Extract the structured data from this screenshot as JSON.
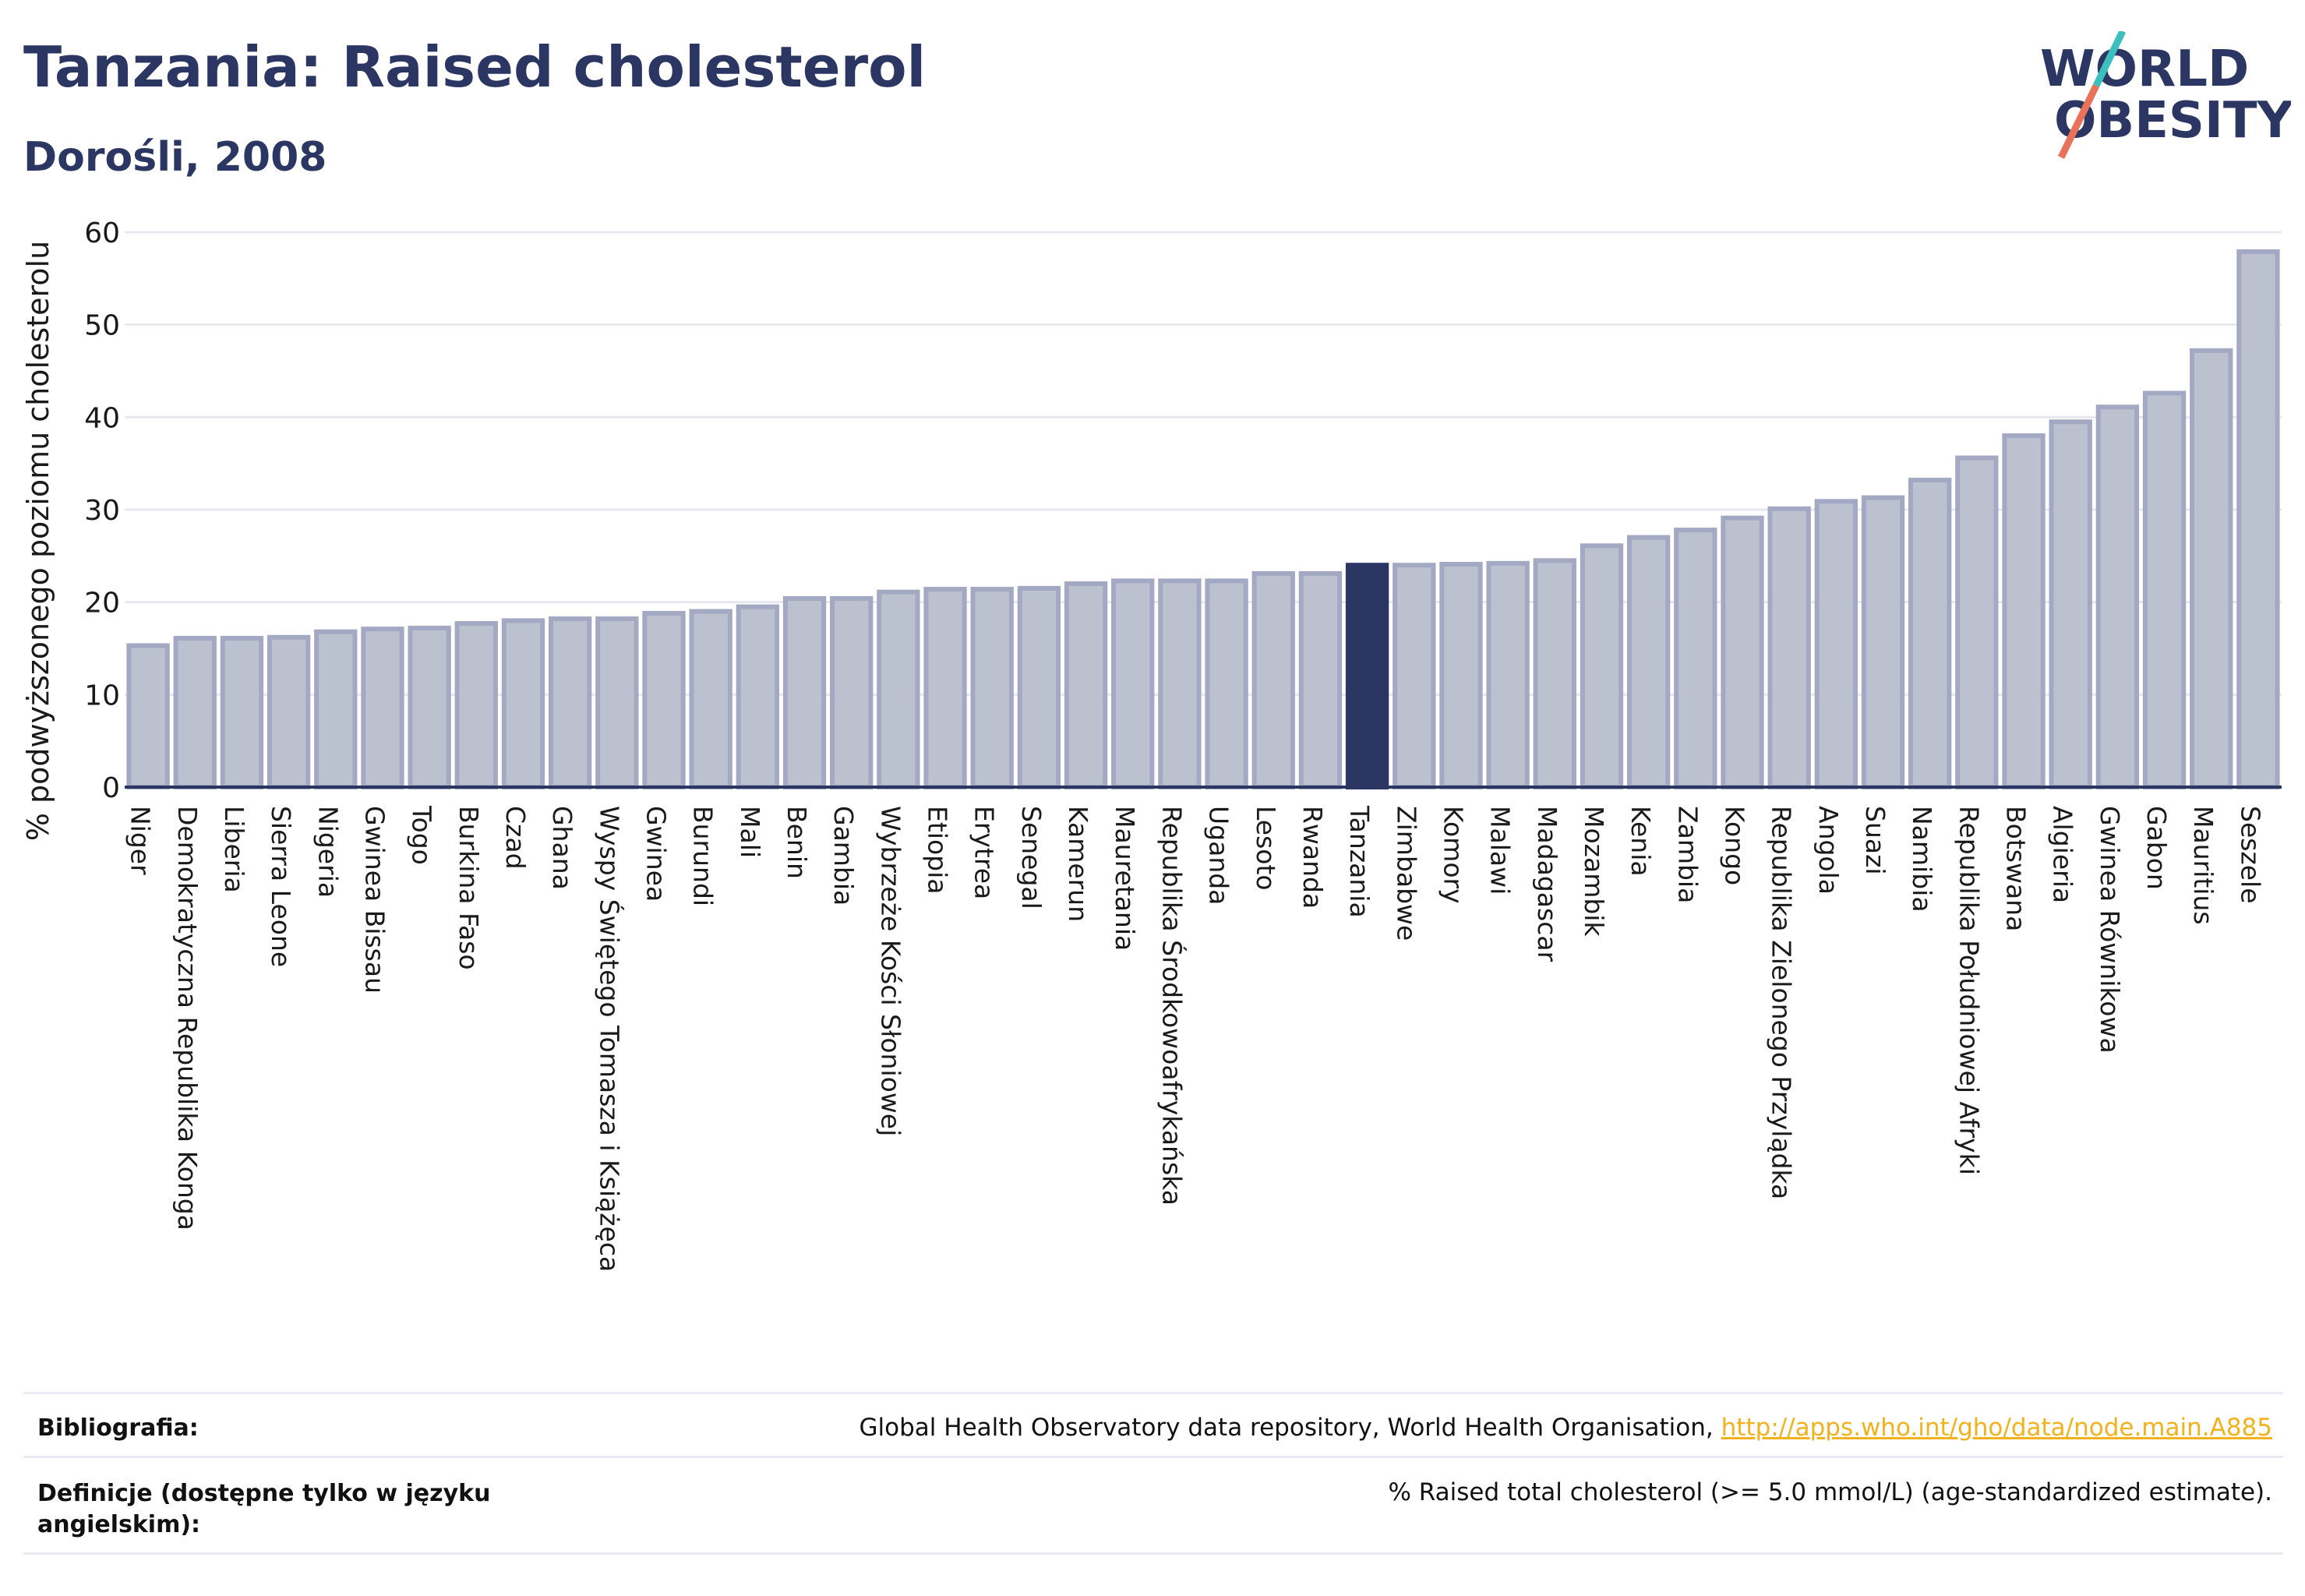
{
  "header": {
    "title": "Tanzania: Raised cholesterol",
    "subtitle": "Dorośli, 2008"
  },
  "logo": {
    "line1": "WORLD",
    "line2": "OBESITY",
    "colors": {
      "text": "#2b3663",
      "slash_top": "#3cbfbf",
      "slash_bottom": "#e8735a"
    }
  },
  "colors": {
    "bar_fill": "#bcc1d0",
    "bar_stroke": "#a3a9c2",
    "highlight": "#2b3663",
    "grid": "#e6e8ef",
    "axis": "#2b3663"
  },
  "chart_data": {
    "type": "bar",
    "title": "Tanzania: Raised cholesterol",
    "subtitle": "Dorośli, 2008",
    "xlabel": "",
    "ylabel": "% podwyższonego poziomu cholesterolu",
    "ylim": [
      0,
      60
    ],
    "yticks": [
      0,
      10,
      20,
      30,
      40,
      50,
      60
    ],
    "grid": true,
    "highlight": "Tanzania",
    "categories": [
      "Niger",
      "Demokratyczna Republika Konga",
      "Liberia",
      "Sierra Leone",
      "Nigeria",
      "Gwinea Bissau",
      "Togo",
      "Burkina Faso",
      "Czad",
      "Ghana",
      "Wyspy Świętego Tomasza i Książęca",
      "Gwinea",
      "Burundi",
      "Mali",
      "Benin",
      "Gambia",
      "Wybrzeże Kości Słoniowej",
      "Etiopia",
      "Erytrea",
      "Senegal",
      "Kamerun",
      "Mauretania",
      "Republika Środkowoafrykańska",
      "Uganda",
      "Lesoto",
      "Rwanda",
      "Tanzania",
      "Zimbabwe",
      "Komory",
      "Malawi",
      "Madagascar",
      "Mozambik",
      "Kenia",
      "Zambia",
      "Kongo",
      "Republika Zielonego Przylądka",
      "Angola",
      "Suazi",
      "Namibia",
      "Republika Południowej Afryki",
      "Botswana",
      "Algieria",
      "Gwinea Równikowa",
      "Gabon",
      "Mauritius",
      "Seszele"
    ],
    "values": [
      15.3,
      16.1,
      16.1,
      16.2,
      16.8,
      17.1,
      17.2,
      17.7,
      18.0,
      18.2,
      18.2,
      18.8,
      19.0,
      19.5,
      20.4,
      20.4,
      21.1,
      21.4,
      21.4,
      21.5,
      22.0,
      22.3,
      22.3,
      22.3,
      23.1,
      23.1,
      24.0,
      24.0,
      24.1,
      24.2,
      24.5,
      26.1,
      27.0,
      27.8,
      29.1,
      30.1,
      30.9,
      31.3,
      33.2,
      35.6,
      38.0,
      39.5,
      41.1,
      42.6,
      47.2,
      57.9
    ]
  },
  "footer": {
    "bibliography_label": "Bibliografia:",
    "bibliography_text": "Global Health Observatory data repository, World Health Organisation, ",
    "bibliography_link": "http://apps.who.int/gho/data/node.main.A885",
    "definitions_label_line1": "Definicje (dostępne tylko w języku",
    "definitions_label_line2": "angielskim):",
    "definitions_text": "% Raised total cholesterol (>= 5.0 mmol/L) (age-standardized estimate)."
  }
}
